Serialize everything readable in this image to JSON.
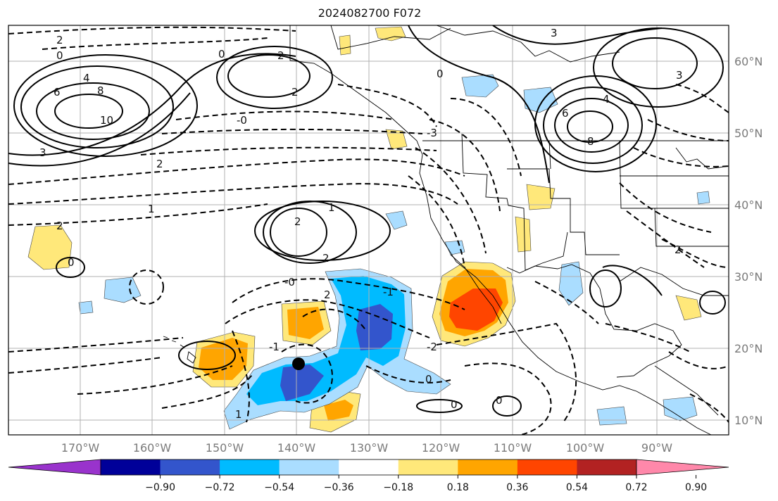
{
  "title": "2024082700 F072",
  "map": {
    "lon_labels": [
      "170°W",
      "160°W",
      "150°W",
      "140°W",
      "130°W",
      "120°W",
      "110°W",
      "100°W",
      "90°W"
    ],
    "lat_labels": [
      "60°N",
      "50°N",
      "40°N",
      "30°N",
      "20°N",
      "10°N"
    ],
    "marker": "storm-center-dot",
    "contour_labels": [
      {
        "id": "c1",
        "text": "2"
      },
      {
        "id": "c2",
        "text": "0"
      },
      {
        "id": "c3",
        "text": "4"
      },
      {
        "id": "c4",
        "text": "6"
      },
      {
        "id": "c5",
        "text": "8"
      },
      {
        "id": "c6",
        "text": "10"
      },
      {
        "id": "c7",
        "text": "3"
      },
      {
        "id": "c8",
        "text": "2"
      },
      {
        "id": "c9",
        "text": "2"
      },
      {
        "id": "c10",
        "text": "0"
      },
      {
        "id": "c11",
        "text": "2"
      },
      {
        "id": "c12",
        "text": "1"
      },
      {
        "id": "c13",
        "text": "-3"
      },
      {
        "id": "c14",
        "text": "3"
      },
      {
        "id": "c15",
        "text": "4"
      },
      {
        "id": "c16",
        "text": "6"
      },
      {
        "id": "c17",
        "text": "8"
      },
      {
        "id": "c18",
        "text": "1"
      },
      {
        "id": "c19",
        "text": "2"
      },
      {
        "id": "c20",
        "text": "2"
      },
      {
        "id": "c21",
        "text": "-0"
      },
      {
        "id": "c22",
        "text": "2"
      },
      {
        "id": "c23",
        "text": "-0"
      },
      {
        "id": "c24",
        "text": "-1"
      },
      {
        "id": "c25",
        "text": "-2"
      },
      {
        "id": "c26",
        "text": "0"
      },
      {
        "id": "c27",
        "text": "0"
      },
      {
        "id": "c28",
        "text": "0"
      },
      {
        "id": "c29",
        "text": "2"
      },
      {
        "id": "c30",
        "text": "0"
      },
      {
        "id": "c31",
        "text": "-1"
      },
      {
        "id": "c32",
        "text": "1"
      },
      {
        "id": "c33",
        "text": "2"
      },
      {
        "id": "c34",
        "text": "3"
      },
      {
        "id": "c35",
        "text": "0"
      }
    ]
  },
  "colorbar": {
    "colors": [
      "#9933cc",
      "#000099",
      "#3355cc",
      "#00bbff",
      "#aaddff",
      "#ffffff",
      "#ffe87a",
      "#ffa500",
      "#ff4500",
      "#b22222",
      "#ff88aa"
    ],
    "tick_labels": [
      "−0.90",
      "−0.72",
      "−0.54",
      "−0.36",
      "−0.18",
      "0.18",
      "0.36",
      "0.54",
      "0.72",
      "0.90"
    ]
  }
}
